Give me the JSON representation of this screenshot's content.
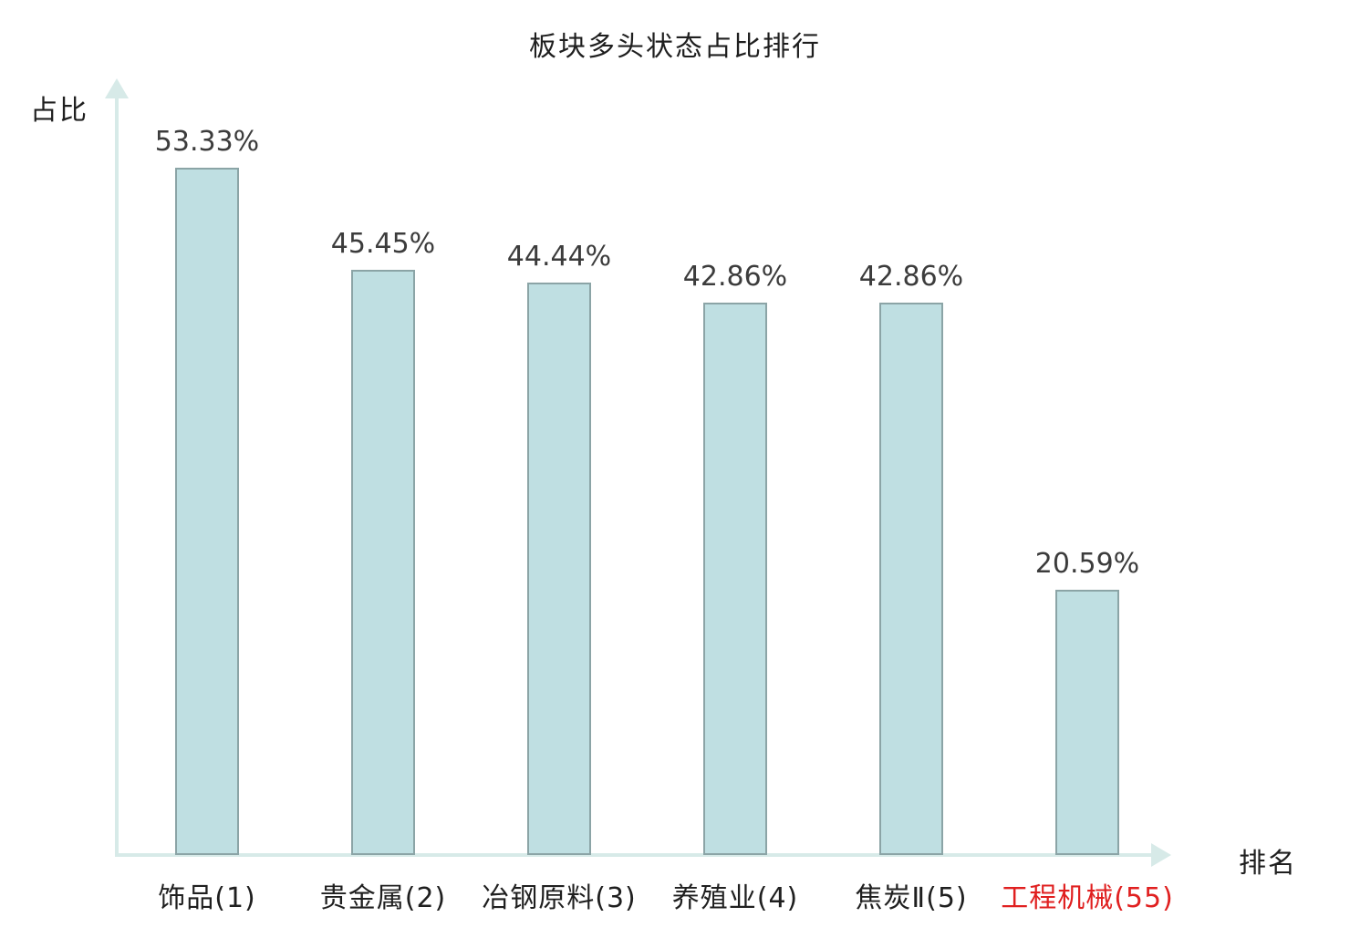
{
  "page": {
    "background": "#ffffff"
  },
  "chart_data": {
    "type": "bar",
    "title": "板块多头状态占比排行",
    "xlabel": "排名",
    "ylabel": "占比",
    "categories": [
      "饰品(1)",
      "贵金属(2)",
      "冶钢原料(3)",
      "养殖业(4)",
      "焦炭Ⅱ(5)",
      "工程机械(55)"
    ],
    "values": [
      53.33,
      45.45,
      44.44,
      42.86,
      42.86,
      20.59
    ],
    "value_labels": [
      "53.33%",
      "45.45%",
      "44.44%",
      "42.86%",
      "42.86%",
      "20.59%"
    ],
    "highlight_index": 5,
    "ylim": [
      0,
      60
    ],
    "grid": false,
    "legend": "none",
    "colors": {
      "bar_fill": "#bfdfe2",
      "bar_border": "#8ba4a6",
      "axis": "#d7eae8",
      "value_text": "#3c3c3c",
      "category_text": "#1f1f1f",
      "highlight_text": "#e02020",
      "title_text": "#1f1f1f"
    }
  }
}
